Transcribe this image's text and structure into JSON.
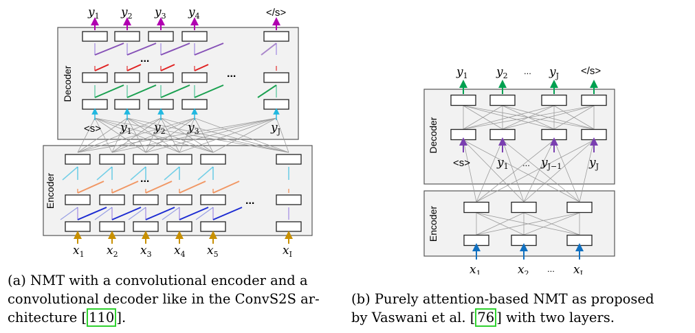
{
  "figure_a": {
    "decoder_label": "Decoder",
    "encoder_label": "Encoder",
    "outputs": [
      "y",
      "y",
      "y",
      "y",
      "</s>"
    ],
    "outputs_sub": [
      "1",
      "2",
      "3",
      "4",
      ""
    ],
    "decoder_inputs": [
      "<s>",
      "y",
      "y",
      "y",
      "y"
    ],
    "decoder_inputs_sub": [
      "",
      "1",
      "2",
      "3",
      "J"
    ],
    "inputs": [
      "x",
      "x",
      "x",
      "x",
      "x",
      "x"
    ],
    "inputs_sub": [
      "1",
      "2",
      "3",
      "4",
      "5",
      "I"
    ],
    "ellipsis": "...",
    "caption_lines": [
      "(a) NMT with a convolutional encoder and a",
      "convolutional decoder like in the ConvS2S ar-",
      "chitecture "
    ],
    "cite": "110",
    "caption_end": "."
  },
  "figure_b": {
    "decoder_label": "Decoder",
    "encoder_label": "Encoder",
    "outputs": [
      "y",
      "y",
      "y",
      "</s>"
    ],
    "outputs_sub": [
      "1",
      "2",
      "J",
      ""
    ],
    "decoder_inputs": [
      "<s>",
      "y",
      "y",
      "y"
    ],
    "decoder_inputs_sub": [
      "",
      "1",
      "J−1",
      "J"
    ],
    "inputs": [
      "x",
      "x",
      "x"
    ],
    "inputs_sub": [
      "1",
      "2",
      "I"
    ],
    "ellipsis": "...",
    "caption_lines": [
      "(b) Purely attention-based NMT as proposed",
      "by Vaswani et al. "
    ],
    "cite": "76",
    "caption_end": " with two layers."
  },
  "colors": {
    "output_arrow_a": "#b000b0",
    "output_arrow_b": "#00a050",
    "purple": "#7a3fb0",
    "red": "#e02020",
    "green": "#1aa050",
    "cyan": "#20b8e0",
    "orange": "#f08040",
    "blue": "#1020d0",
    "gold": "#c89000",
    "input_arrow_b": "#1070c0",
    "panel": "#f2f2f2"
  }
}
